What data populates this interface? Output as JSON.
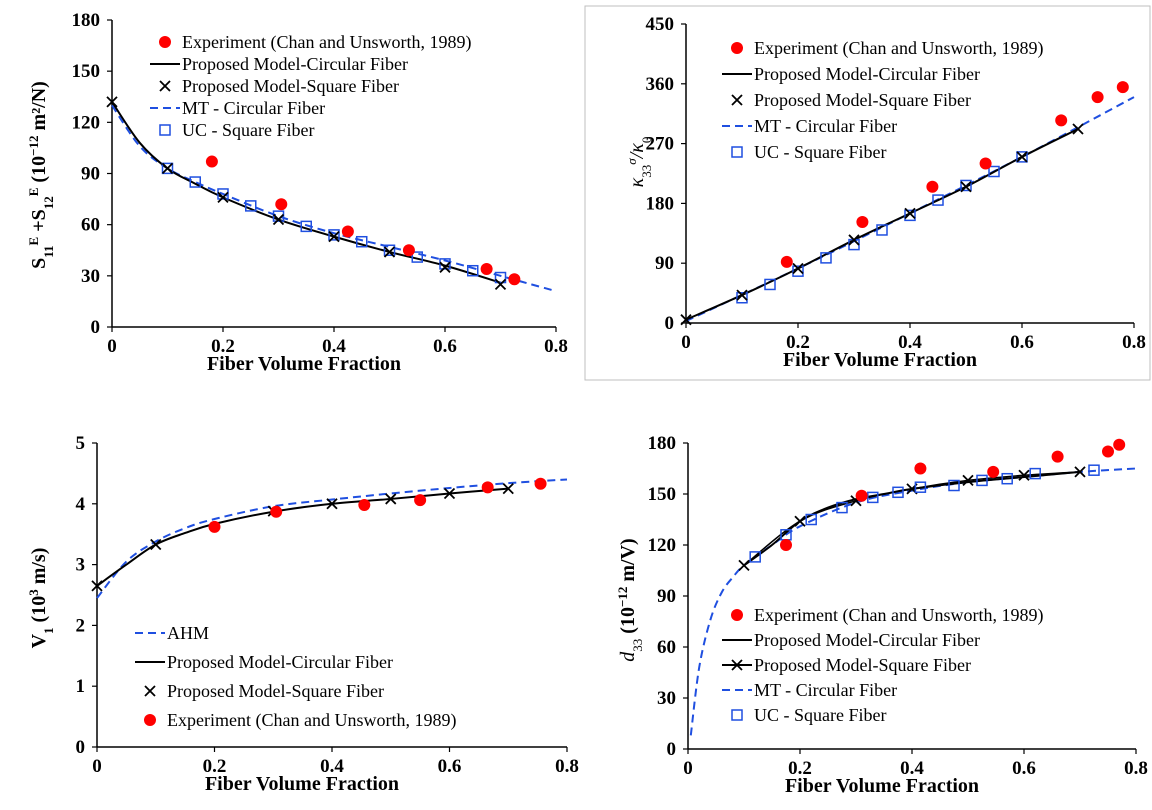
{
  "chart_data": [
    {
      "id": "p1",
      "type": "line",
      "xlabel": "Fiber Volume Fraction",
      "ylabel_parts": {
        "s1": "S",
        "s1_sub": "11",
        "s1_sup": "E",
        "plus": " +S",
        "s2_sub": "12",
        "s2_sup": "E",
        "unit_open": " (10",
        "unit_exp": "−12",
        "unit_close": "  m²/N)"
      },
      "xlim": [
        0,
        0.8
      ],
      "ylim": [
        0,
        180
      ],
      "xticks": [
        "0",
        "0.2",
        "0.4",
        "0.6",
        "0.8"
      ],
      "yticks": [
        "0",
        "30",
        "60",
        "90",
        "120",
        "150",
        "180"
      ],
      "legend": [
        "Experiment (Chan and Unsworth, 1989)",
        "Proposed Model-Circular Fiber",
        "Proposed Model-Square Fiber",
        "MT - Circular Fiber",
        "UC - Square Fiber"
      ],
      "series": [
        {
          "name": "Experiment (Chan and Unsworth, 1989)",
          "style": "red-dot",
          "x": [
            0.18,
            0.305,
            0.425,
            0.535,
            0.675,
            0.725
          ],
          "y": [
            97,
            72,
            56,
            45,
            34,
            28
          ]
        },
        {
          "name": "Proposed Model-Circular Fiber",
          "style": "black-line",
          "x": [
            0,
            0.05,
            0.1,
            0.15,
            0.2,
            0.3,
            0.4,
            0.5,
            0.6,
            0.7
          ],
          "y": [
            132,
            108,
            93,
            84,
            76,
            63,
            53,
            44,
            36,
            26
          ]
        },
        {
          "name": "Proposed Model-Square Fiber",
          "style": "black-x",
          "x": [
            0,
            0.1,
            0.2,
            0.3,
            0.4,
            0.5,
            0.6,
            0.7
          ],
          "y": [
            132,
            93,
            76,
            63,
            53,
            44,
            35,
            25
          ]
        },
        {
          "name": "MT - Circular Fiber",
          "style": "blue-dash",
          "x": [
            0,
            0.05,
            0.1,
            0.15,
            0.2,
            0.3,
            0.4,
            0.5,
            0.6,
            0.7,
            0.8
          ],
          "y": [
            130,
            106,
            93,
            85,
            78,
            65,
            55,
            47,
            39,
            30,
            21
          ]
        },
        {
          "name": "UC - Square Fiber",
          "style": "blue-square",
          "x": [
            0.1,
            0.15,
            0.2,
            0.25,
            0.3,
            0.35,
            0.4,
            0.45,
            0.5,
            0.55,
            0.6,
            0.65,
            0.7
          ],
          "y": [
            93,
            85,
            78,
            71,
            65,
            59,
            54,
            50,
            45,
            41,
            37,
            33,
            29
          ]
        }
      ]
    },
    {
      "id": "p2",
      "type": "line",
      "xlabel": "Fiber Volume Fraction",
      "ylabel_parts": {
        "k": "κ",
        "sub": "33",
        "sup": "σ",
        "rest": "/κ",
        "rest_sub": "0"
      },
      "xlim": [
        0,
        0.8
      ],
      "ylim": [
        0,
        450
      ],
      "xticks": [
        "0",
        "0.2",
        "0.4",
        "0.6",
        "0.8"
      ],
      "yticks": [
        "0",
        "90",
        "180",
        "270",
        "360",
        "450"
      ],
      "legend": [
        "Experiment (Chan and Unsworth, 1989)",
        "Proposed Model-Circular Fiber",
        "Proposed Model-Square Fiber",
        "MT - Circular Fiber",
        "UC - Square Fiber"
      ],
      "series": [
        {
          "name": "Experiment (Chan and Unsworth, 1989)",
          "style": "red-dot",
          "x": [
            0.18,
            0.315,
            0.44,
            0.535,
            0.67,
            0.735,
            0.78
          ],
          "y": [
            92,
            152,
            205,
            240,
            305,
            340,
            355
          ]
        },
        {
          "name": "Proposed Model-Circular Fiber",
          "style": "black-line",
          "x": [
            0,
            0.1,
            0.2,
            0.3,
            0.4,
            0.5,
            0.6,
            0.7
          ],
          "y": [
            5,
            42,
            82,
            125,
            165,
            205,
            250,
            292
          ]
        },
        {
          "name": "Proposed Model-Square Fiber",
          "style": "black-x",
          "x": [
            0,
            0.1,
            0.2,
            0.3,
            0.4,
            0.5,
            0.6,
            0.7
          ],
          "y": [
            5,
            42,
            82,
            125,
            165,
            205,
            250,
            292
          ]
        },
        {
          "name": "MT - Circular Fiber",
          "style": "blue-dash",
          "x": [
            0,
            0.2,
            0.4,
            0.6,
            0.8
          ],
          "y": [
            3,
            82,
            165,
            250,
            340
          ]
        },
        {
          "name": "UC - Square Fiber",
          "style": "blue-square",
          "x": [
            0.1,
            0.15,
            0.2,
            0.25,
            0.3,
            0.35,
            0.4,
            0.45,
            0.5,
            0.55,
            0.6
          ],
          "y": [
            38,
            58,
            78,
            98,
            118,
            140,
            162,
            185,
            207,
            228,
            250
          ]
        }
      ]
    },
    {
      "id": "p3",
      "type": "line",
      "xlabel": "Fiber Volume Fraction",
      "ylabel_parts": {
        "v": "V",
        "sub": "1",
        "open": " (10",
        "sup": "3",
        "close": " m/s)"
      },
      "xlim": [
        0,
        0.8
      ],
      "ylim": [
        0,
        5
      ],
      "xticks": [
        "0",
        "0.2",
        "0.4",
        "0.6",
        "0.8"
      ],
      "yticks": [
        "0",
        "1",
        "2",
        "3",
        "4",
        "5"
      ],
      "legend": [
        "AHM",
        "Proposed Model-Circular Fiber",
        "Proposed Model-Square Fiber",
        "Experiment (Chan and Unsworth, 1989)"
      ],
      "series": [
        {
          "name": "AHM",
          "style": "blue-dash",
          "x": [
            0,
            0.05,
            0.1,
            0.15,
            0.2,
            0.3,
            0.4,
            0.5,
            0.6,
            0.7,
            0.8
          ],
          "y": [
            2.45,
            3.05,
            3.38,
            3.6,
            3.75,
            3.96,
            4.07,
            4.17,
            4.26,
            4.34,
            4.4
          ]
        },
        {
          "name": "Proposed Model-Circular Fiber",
          "style": "black-line",
          "x": [
            0,
            0.05,
            0.1,
            0.15,
            0.2,
            0.3,
            0.4,
            0.5,
            0.6,
            0.7
          ],
          "y": [
            2.65,
            3.0,
            3.33,
            3.52,
            3.67,
            3.87,
            4.0,
            4.08,
            4.17,
            4.25
          ]
        },
        {
          "name": "Proposed Model-Square Fiber",
          "style": "black-x",
          "x": [
            0,
            0.1,
            0.3,
            0.4,
            0.5,
            0.6,
            0.7
          ],
          "y": [
            2.65,
            3.33,
            3.88,
            4.0,
            4.08,
            4.17,
            4.25
          ]
        },
        {
          "name": "Experiment (Chan and Unsworth, 1989)",
          "style": "red-dot",
          "x": [
            0.2,
            0.305,
            0.455,
            0.55,
            0.665,
            0.755
          ],
          "y": [
            3.62,
            3.87,
            3.98,
            4.06,
            4.27,
            4.33
          ]
        }
      ]
    },
    {
      "id": "p4",
      "type": "line",
      "xlabel": "Fiber Volume Fraction",
      "ylabel_parts": {
        "d": "d",
        "sub": "33",
        "open": "  (10",
        "sup": "−12",
        "close": "  m/V)"
      },
      "xlim": [
        0,
        0.8
      ],
      "ylim": [
        0,
        180
      ],
      "xticks": [
        "0",
        "0.2",
        "0.4",
        "0.6",
        "0.8"
      ],
      "yticks": [
        "0",
        "30",
        "60",
        "90",
        "120",
        "150",
        "180"
      ],
      "legend": [
        "Experiment (Chan and Unsworth, 1989)",
        "Proposed Model-Circular Fiber",
        "Proposed Model-Square Fiber",
        "MT - Circular Fiber",
        "UC - Square Fiber"
      ],
      "series": [
        {
          "name": "Experiment (Chan and Unsworth, 1989)",
          "style": "red-dot",
          "x": [
            0.175,
            0.31,
            0.415,
            0.545,
            0.66,
            0.75,
            0.77
          ],
          "y": [
            120,
            149,
            165,
            163,
            172,
            175,
            179
          ]
        },
        {
          "name": "Proposed Model-Circular Fiber",
          "style": "black-line",
          "x": [
            0.1,
            0.15,
            0.2,
            0.25,
            0.3,
            0.35,
            0.4,
            0.5,
            0.6,
            0.7
          ],
          "y": [
            108,
            120,
            134,
            142,
            147,
            150,
            153,
            157,
            160,
            163
          ]
        },
        {
          "name": "Proposed Model-Square Fiber",
          "style": "black-x-line",
          "x": [
            0.1,
            0.2,
            0.3,
            0.4,
            0.5,
            0.6,
            0.7
          ],
          "y": [
            108,
            134,
            146,
            153,
            158,
            161,
            163
          ]
        },
        {
          "name": "MT - Circular Fiber",
          "style": "blue-dash",
          "x": [
            0.005,
            0.02,
            0.04,
            0.06,
            0.08,
            0.1,
            0.15,
            0.2,
            0.3,
            0.4,
            0.5,
            0.6,
            0.7,
            0.8
          ],
          "y": [
            8,
            48,
            76,
            92,
            101,
            108,
            120,
            131,
            145,
            152,
            157,
            160,
            163,
            165
          ]
        },
        {
          "name": "UC - Square Fiber",
          "style": "blue-square",
          "x": [
            0.12,
            0.175,
            0.22,
            0.275,
            0.33,
            0.375,
            0.415,
            0.475,
            0.525,
            0.57,
            0.62,
            0.725
          ],
          "y": [
            113,
            126,
            135,
            142,
            148,
            151,
            154,
            155,
            158,
            159,
            162,
            164
          ]
        }
      ]
    }
  ]
}
